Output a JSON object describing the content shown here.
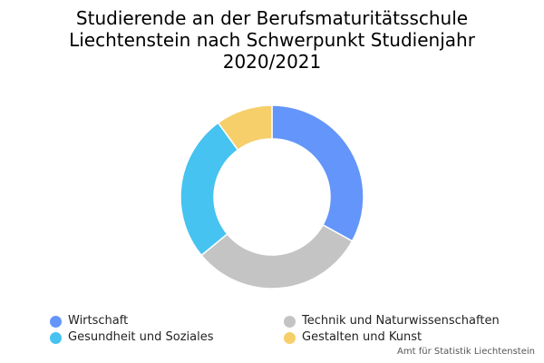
{
  "chart_data": {
    "type": "pie",
    "title_lines": [
      "Studierende an der Berufsmaturitätsschule",
      "Liechtenstein nach Schwerpunkt Studienjahr",
      "2020/2021"
    ],
    "categories": [
      "Wirtschaft",
      "Technik und Naturwissenschaften",
      "Gesundheit und Soziales",
      "Gestalten und Kunst"
    ],
    "values": [
      33,
      31,
      26,
      10
    ],
    "colors": [
      "#6395fa",
      "#c4c4c4",
      "#46c3f0",
      "#f6cf6b"
    ],
    "donut": true,
    "legend_position": "bottom"
  },
  "credit": "Amt für Statistik Liechtenstein"
}
